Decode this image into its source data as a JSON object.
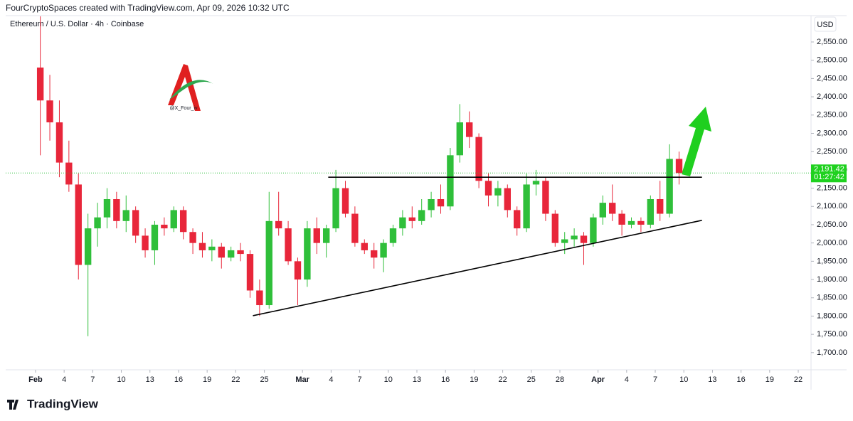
{
  "header": {
    "credit": "FourCryptoSpaces created with TradingView.com, Apr 09, 2026 10:32 UTC"
  },
  "chart_data": {
    "type": "candlestick",
    "title": "Ethereum / U.S. Dollar · 4h · Coinbase",
    "currency": "USD",
    "watermark": "@X_Four_iv",
    "up_color": "#2fbf3a",
    "down_color": "#e8263a",
    "x": [
      32,
      33,
      34,
      35,
      36,
      37,
      38,
      39,
      40,
      41,
      42,
      43,
      44,
      45,
      46,
      47,
      48,
      49,
      50,
      51,
      52,
      53,
      54,
      55,
      56,
      57,
      58,
      59,
      60,
      61,
      62,
      63,
      64,
      65,
      66,
      67,
      68,
      69,
      70,
      71,
      72,
      73,
      74,
      75,
      76,
      77,
      78,
      79,
      80,
      81,
      82,
      83,
      84,
      85,
      86,
      87,
      88,
      89,
      90,
      91,
      92,
      93,
      94,
      95,
      96,
      97,
      98,
      99
    ],
    "open": [
      2480,
      2390,
      2330,
      2220,
      2160,
      1940,
      2040,
      2070,
      2120,
      2060,
      2090,
      2020,
      1980,
      2050,
      2040,
      2090,
      2030,
      2000,
      1980,
      1990,
      1960,
      1980,
      1970,
      1870,
      1830,
      2060,
      2040,
      1950,
      1900,
      2040,
      2000,
      2040,
      2150,
      2080,
      2000,
      1980,
      1960,
      2000,
      2040,
      2070,
      2060,
      2090,
      2120,
      2100,
      2240,
      2330,
      2290,
      2170,
      2130,
      2150,
      2090,
      2040,
      2160,
      2170,
      2080,
      2000,
      2010,
      2020,
      2000,
      2070,
      2110,
      2080,
      2050,
      2060,
      2050,
      2120,
      2080,
      2230
    ],
    "high": [
      2620,
      2460,
      2390,
      2280,
      2190,
      2080,
      2110,
      2150,
      2140,
      2130,
      2100,
      2040,
      2060,
      2070,
      2100,
      2100,
      2040,
      2030,
      2010,
      2000,
      1990,
      2000,
      1980,
      1900,
      2140,
      2140,
      2060,
      1960,
      2060,
      2070,
      2050,
      2200,
      2170,
      2100,
      2010,
      2000,
      2010,
      2050,
      2090,
      2100,
      2120,
      2140,
      2160,
      2260,
      2380,
      2360,
      2300,
      2190,
      2170,
      2160,
      2100,
      2190,
      2200,
      2180,
      2090,
      2030,
      2040,
      2030,
      2080,
      2130,
      2160,
      2090,
      2070,
      2070,
      2130,
      2170,
      2270,
      2250
    ],
    "low": [
      2240,
      2280,
      2180,
      2140,
      1900,
      1745,
      1990,
      2040,
      2040,
      2030,
      2000,
      1960,
      1940,
      2020,
      2030,
      2010,
      1970,
      1960,
      1950,
      1930,
      1950,
      1950,
      1850,
      1800,
      1820,
      2020,
      1940,
      1830,
      1880,
      1970,
      1960,
      2030,
      2070,
      1990,
      1970,
      1930,
      1920,
      1990,
      2020,
      2040,
      2050,
      2070,
      2080,
      2090,
      2220,
      2260,
      2150,
      2100,
      2100,
      2070,
      2020,
      2030,
      2130,
      2060,
      1990,
      1970,
      1990,
      1940,
      1990,
      2050,
      2060,
      2020,
      2040,
      2030,
      2040,
      2060,
      2070,
      2160
    ],
    "close": [
      2390,
      2330,
      2220,
      2160,
      1940,
      2040,
      2070,
      2120,
      2060,
      2090,
      2020,
      1980,
      2050,
      2040,
      2090,
      2030,
      2000,
      1980,
      1990,
      1960,
      1980,
      1970,
      1870,
      1830,
      2060,
      2040,
      1950,
      1900,
      2040,
      2000,
      2040,
      2150,
      2080,
      2000,
      1980,
      1960,
      2000,
      2040,
      2070,
      2060,
      2090,
      2120,
      2100,
      2240,
      2330,
      2290,
      2170,
      2130,
      2150,
      2090,
      2040,
      2160,
      2170,
      2080,
      2000,
      2010,
      2020,
      2000,
      2070,
      2110,
      2080,
      2050,
      2060,
      2050,
      2120,
      2080,
      2230,
      2191.42
    ],
    "last_price": {
      "value": 2191.42,
      "label": "2,191.42"
    },
    "countdown": "01:27:42",
    "trendlines": [
      {
        "x": [
          54.8,
          101.9
        ],
        "y": [
          1801,
          2062
        ]
      },
      {
        "x": [
          62.7,
          101.9
        ],
        "y": [
          2180,
          2180
        ]
      }
    ],
    "xlim": [
      28.87,
      113.34
    ],
    "xticks": [
      {
        "value": 32,
        "label": "Feb"
      },
      {
        "value": 35,
        "label": "4"
      },
      {
        "value": 38,
        "label": "7"
      },
      {
        "value": 41,
        "label": "10"
      },
      {
        "value": 44,
        "label": "13"
      },
      {
        "value": 47,
        "label": "16"
      },
      {
        "value": 50,
        "label": "19"
      },
      {
        "value": 53,
        "label": "22"
      },
      {
        "value": 56,
        "label": "25"
      },
      {
        "value": 60,
        "label": "Mar"
      },
      {
        "value": 63,
        "label": "4"
      },
      {
        "value": 66,
        "label": "7"
      },
      {
        "value": 69,
        "label": "10"
      },
      {
        "value": 72,
        "label": "13"
      },
      {
        "value": 75,
        "label": "16"
      },
      {
        "value": 78,
        "label": "19"
      },
      {
        "value": 81,
        "label": "22"
      },
      {
        "value": 84,
        "label": "25"
      },
      {
        "value": 87,
        "label": "28"
      },
      {
        "value": 91,
        "label": "Apr"
      },
      {
        "value": 94,
        "label": "4"
      },
      {
        "value": 97,
        "label": "7"
      },
      {
        "value": 100,
        "label": "10"
      },
      {
        "value": 103,
        "label": "13"
      },
      {
        "value": 106,
        "label": "16"
      },
      {
        "value": 109,
        "label": "19"
      },
      {
        "value": 112,
        "label": "22"
      }
    ],
    "ylim": [
      1653,
      2622
    ],
    "yticks": [
      {
        "value": 1700,
        "label": "1,700.00"
      },
      {
        "value": 1750,
        "label": "1,750.00"
      },
      {
        "value": 1800,
        "label": "1,800.00"
      },
      {
        "value": 1850,
        "label": "1,850.00"
      },
      {
        "value": 1900,
        "label": "1,900.00"
      },
      {
        "value": 1950,
        "label": "1,950.00"
      },
      {
        "value": 2000,
        "label": "2,000.00"
      },
      {
        "value": 2050,
        "label": "2,050.00"
      },
      {
        "value": 2100,
        "label": "2,100.00"
      },
      {
        "value": 2150,
        "label": "2,150.00"
      },
      {
        "value": 2200,
        "label": "2,200.00"
      },
      {
        "value": 2250,
        "label": "2,250.00"
      },
      {
        "value": 2300,
        "label": "2,300.00"
      },
      {
        "value": 2350,
        "label": "2,350.00"
      },
      {
        "value": 2400,
        "label": "2,400.00"
      },
      {
        "value": 2450,
        "label": "2,450.00"
      },
      {
        "value": 2500,
        "label": "2,500.00"
      },
      {
        "value": 2550,
        "label": "2,550.00"
      }
    ]
  },
  "footer": {
    "brand": "TradingView"
  }
}
